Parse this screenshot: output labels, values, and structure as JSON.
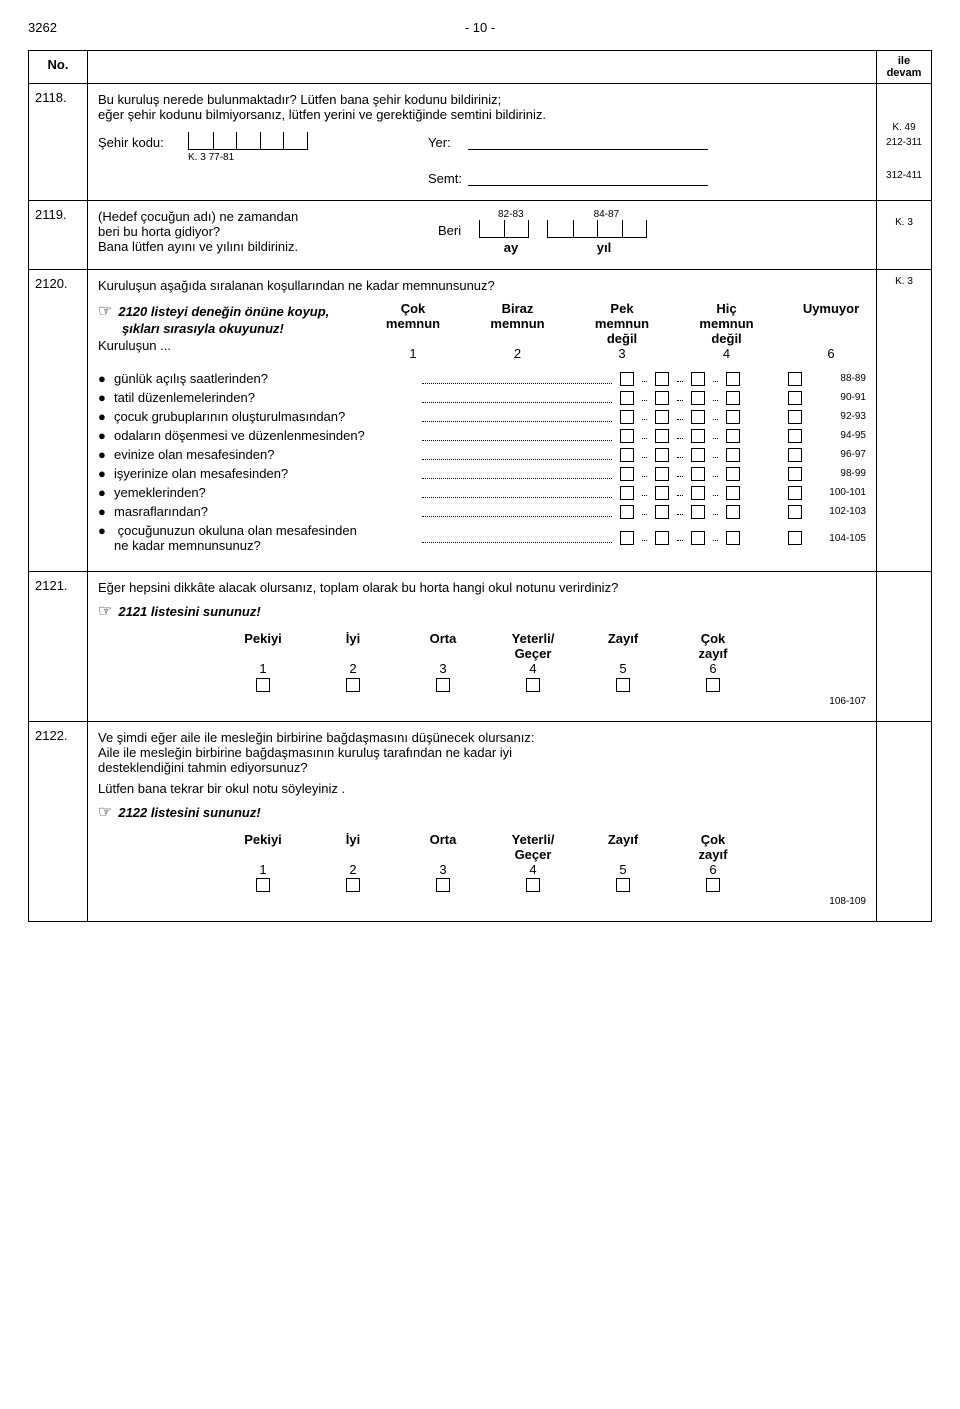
{
  "header": {
    "doc_id": "3262",
    "page_label": "- 10 -"
  },
  "no_header": "No.",
  "devam_header_line1": "ile",
  "devam_header_line2": "devam",
  "q2118": {
    "num": "2118.",
    "text_l1": "Bu kuruluş nerede bulunmaktadır? Lütfen bana şehir kodunu bildiriniz;",
    "text_l2": "eğer şehir kodunu bilmiyorsanız, lütfen yerini ve gerektiğinde semtini bildiriniz.",
    "sehir_label": "Şehir kodu:",
    "k3_ref": "K. 3   77-81",
    "yer_label": "Yer:",
    "semt_label": "Semt:",
    "ref_right_top": "K. 49",
    "ref_right_yer": "212-311",
    "ref_right_semt": "312-411"
  },
  "q2119": {
    "num": "2119.",
    "text_l1": "(Hedef çocuğun adı) ne zamandan",
    "text_l2": "beri bu horta gidiyor?",
    "text_l3": "Bana lütfen ayını ve yılını bildiriniz.",
    "beri": "Beri",
    "ay": "ay",
    "yil": "yıl",
    "ref_top_l": "82-83",
    "ref_top_r": "84-87",
    "ref_right": "K. 3"
  },
  "q2120": {
    "num": "2120.",
    "question": "Kuruluşun aşağıda sıralanan koşullarından ne kadar memnunsunuz?",
    "ref_right": "K. 3",
    "instr_l1": "2120 listeyi deneğin önüne koyup,",
    "instr_l2": "şıkları sırasıyla okuyunuz!",
    "stub": "Kuruluşun ...",
    "col1_l1": "Çok",
    "col1_l2": "memnun",
    "col2_l1": "Biraz",
    "col2_l2": "memnun",
    "col3_l1": "Pek",
    "col3_l2": "memnun",
    "col3_l3": "değil",
    "col4_l1": "Hiç",
    "col4_l2": "memnun",
    "col4_l3": "değil",
    "col5": "Uymuyor",
    "scale": [
      "1",
      "2",
      "3",
      "4",
      "6"
    ],
    "items": [
      {
        "label": "günlük açılış saatlerinden? ",
        "ref": "88-89"
      },
      {
        "label": "tatil düzenlemelerinden? ",
        "ref": "90-91"
      },
      {
        "label": "çocuk grubuplarının oluşturulmasından? ",
        "ref": "92-93"
      },
      {
        "label": "odaların döşenmesi ve düzenlenmesinden? ",
        "ref": "94-95"
      },
      {
        "label": "evinize olan mesafesinden? ",
        "ref": "96-97"
      },
      {
        "label": "işyerinize olan mesafesinden? ",
        "ref": "98-99"
      },
      {
        "label": "yemeklerinden? ",
        "ref": "100-101"
      },
      {
        "label": "masraflarından? ",
        "ref": "102-103"
      }
    ],
    "item_last_l1": "çocuğunuzun okuluna olan mesafesinden",
    "item_last_l2": "ne kadar memnunsunuz? ",
    "item_last_ref": "104-105"
  },
  "q2121": {
    "num": "2121.",
    "question": "Eğer hepsini dikkâte alacak olursanız, toplam olarak bu horta hangi okul notunu verirdiniz?",
    "instr": "2121 listesini sununuz!",
    "cols": [
      {
        "l1": "Pekiyi",
        "l2": "",
        "n": "1"
      },
      {
        "l1": "İyi",
        "l2": "",
        "n": "2"
      },
      {
        "l1": "Orta",
        "l2": "",
        "n": "3"
      },
      {
        "l1": "Yeterli/",
        "l2": "Geçer",
        "n": "4"
      },
      {
        "l1": "Zayıf",
        "l2": "",
        "n": "5"
      },
      {
        "l1": "Çok",
        "l2": "zayıf",
        "n": "6"
      }
    ],
    "ref": "106-107"
  },
  "q2122": {
    "num": "2122.",
    "text_l1": "Ve şimdi eğer aile ile mesleğin birbirine bağdaşmasını düşünecek olursanız:",
    "text_l2": "Aile ile mesleğin birbirine bağdaşmasının kuruluş tarafından ne kadar iyi",
    "text_l3": "desteklendiğini tahmin ediyorsunuz?",
    "text_l4": "Lütfen bana tekrar bir okul notu söyleyiniz .",
    "instr": "2122 listesini sununuz!",
    "cols": [
      {
        "l1": "Pekiyi",
        "l2": "",
        "n": "1"
      },
      {
        "l1": "İyi",
        "l2": "",
        "n": "2"
      },
      {
        "l1": "Orta",
        "l2": "",
        "n": "3"
      },
      {
        "l1": "Yeterli/",
        "l2": "Geçer",
        "n": "4"
      },
      {
        "l1": "Zayıf",
        "l2": "",
        "n": "5"
      },
      {
        "l1": "Çok",
        "l2": "zayıf",
        "n": "6"
      }
    ],
    "ref": "108-109"
  }
}
